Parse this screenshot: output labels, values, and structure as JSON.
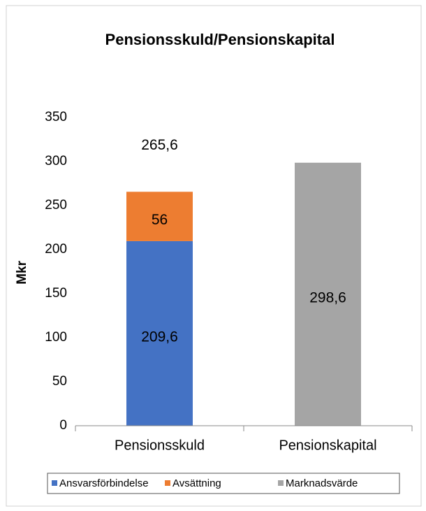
{
  "chart_data": {
    "type": "stacked_bar",
    "title": "Pensionsskuld/Pensionskapital",
    "y_label": "Mkr",
    "categories": [
      "Pensionsskuld",
      "Pensionskapital"
    ],
    "series": [
      {
        "name": "Ansvarsförbindelse",
        "color": "#4472c4",
        "values": [
          209.6,
          null
        ],
        "value_labels": [
          "209,6",
          null
        ]
      },
      {
        "name": "Avsättning",
        "color": "#ed7d31",
        "values": [
          56,
          null
        ],
        "value_labels": [
          "56",
          null
        ]
      },
      {
        "name": "Marknadsvärde",
        "color": "#a5a5a5",
        "values": [
          null,
          298.6
        ],
        "value_labels": [
          null,
          "298,6"
        ]
      }
    ],
    "totals": [
      265.6,
      null
    ],
    "total_labels": [
      "265,6",
      null
    ],
    "ylim": [
      0,
      350
    ],
    "yticks": [
      0,
      50,
      100,
      150,
      200,
      250,
      300,
      350
    ],
    "grid": false,
    "legend": "bottom"
  }
}
